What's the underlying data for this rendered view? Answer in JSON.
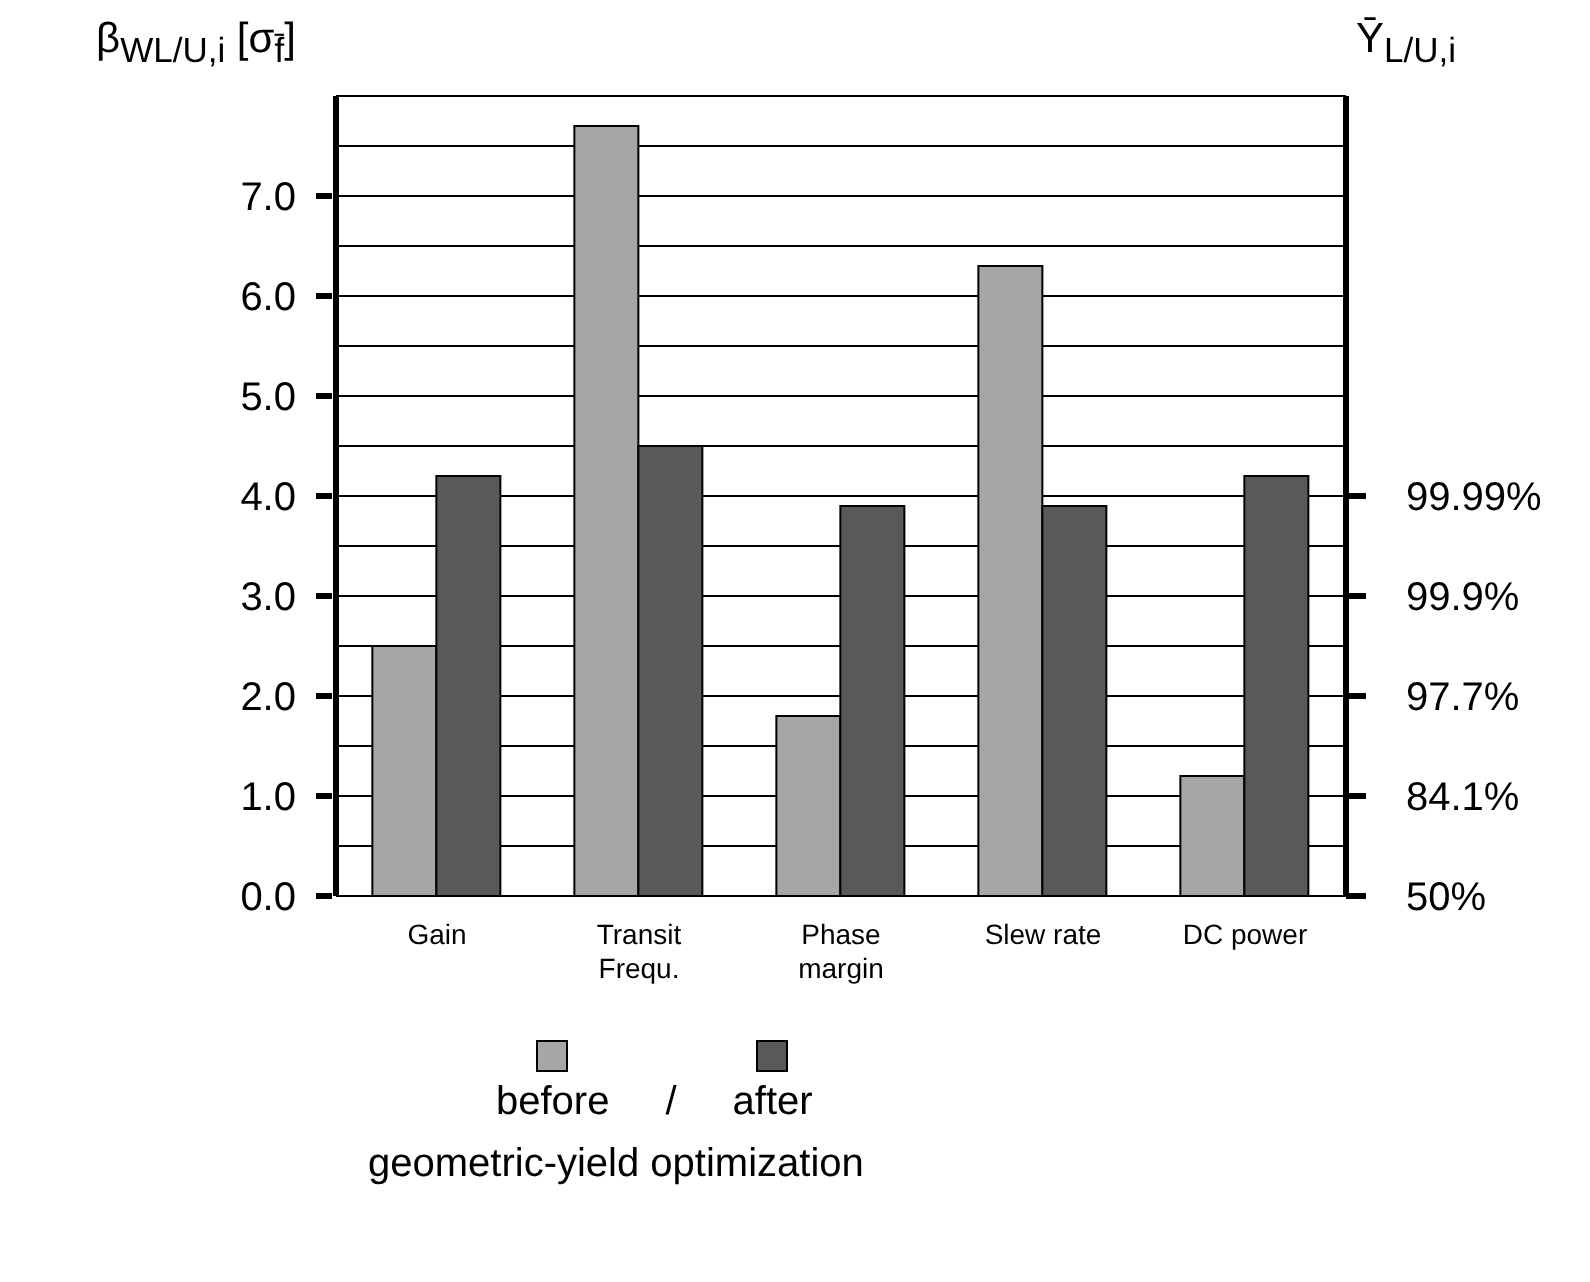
{
  "chart_data": {
    "type": "bar",
    "ylabel": "β$_{WL/U,i}$ [σ$_{f̄}$]",
    "y2label": "Ȳ$_{L/U,i}$",
    "legend_title": "geometric-yield optimization",
    "annotations": [
      "/",
      "50%",
      "84.1%",
      "97.7%",
      "99.9%",
      "99.99%"
    ],
    "categories": [
      "Gain",
      "Transit\nFrequ.",
      "Phase\nmargin",
      "Slew rate",
      "DC power"
    ],
    "series": [
      {
        "name": "before",
        "color": "#a6a6a6",
        "values": [
          2.5,
          7.7,
          1.8,
          6.3,
          1.2
        ]
      },
      {
        "name": "after",
        "color": "#595959",
        "values": [
          4.2,
          4.5,
          3.9,
          3.9,
          4.2
        ]
      }
    ],
    "ylim": [
      0,
      8
    ],
    "yticks": [
      {
        "value": 0,
        "label": "0.0"
      },
      {
        "value": 0.5,
        "label": null
      },
      {
        "value": 1,
        "label": "1.0"
      },
      {
        "value": 1.5,
        "label": null
      },
      {
        "value": 2,
        "label": "2.0"
      },
      {
        "value": 2.5,
        "label": null
      },
      {
        "value": 3,
        "label": "3.0"
      },
      {
        "value": 3.5,
        "label": null
      },
      {
        "value": 4,
        "label": "4.0"
      },
      {
        "value": 4.5,
        "label": null
      },
      {
        "value": 5,
        "label": "5.0"
      },
      {
        "value": 5.5,
        "label": null
      },
      {
        "value": 6,
        "label": "6.0"
      },
      {
        "value": 6.5,
        "label": null
      },
      {
        "value": 7,
        "label": "7.0"
      },
      {
        "value": 7.5,
        "label": null
      }
    ],
    "grid": "y",
    "legend": "bottom"
  }
}
